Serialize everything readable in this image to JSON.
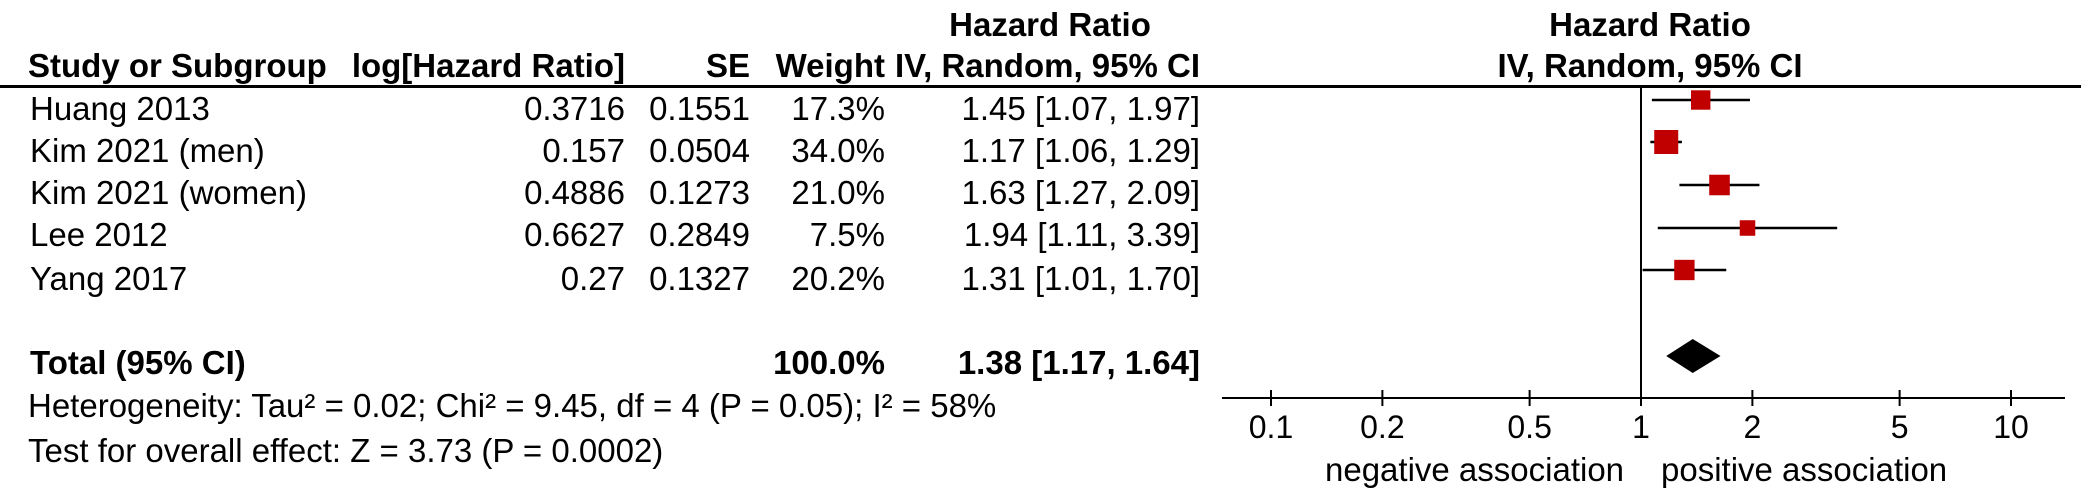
{
  "header": {
    "left_title": "Hazard Ratio",
    "right_title": "Hazard Ratio",
    "col_study": "Study or Subgroup",
    "col_loghr": "log[Hazard Ratio]",
    "col_se": "SE",
    "col_weight": "Weight",
    "col_method": "IV, Random, 95% CI",
    "right_method": "IV, Random, 95% CI"
  },
  "rows": [
    {
      "study": "Huang 2013",
      "loghr": "0.3716",
      "se": "0.1551",
      "weight": "17.3%",
      "ci_text": "1.45 [1.07, 1.97]"
    },
    {
      "study": "Kim 2021 (men)",
      "loghr": "0.157",
      "se": "0.0504",
      "weight": "34.0%",
      "ci_text": "1.17 [1.06, 1.29]"
    },
    {
      "study": "Kim 2021 (women)",
      "loghr": "0.4886",
      "se": "0.1273",
      "weight": "21.0%",
      "ci_text": "1.63 [1.27, 2.09]"
    },
    {
      "study": "Lee 2012",
      "loghr": "0.6627",
      "se": "0.2849",
      "weight": "7.5%",
      "ci_text": "1.94 [1.11, 3.39]"
    },
    {
      "study": "Yang 2017",
      "loghr": "0.27",
      "se": "0.1327",
      "weight": "20.2%",
      "ci_text": "1.31 [1.01, 1.70]"
    }
  ],
  "total": {
    "label": "Total (95% CI)",
    "weight": "100.0%",
    "ci_text": "1.38 [1.17, 1.64]"
  },
  "heterogeneity": "Heterogeneity: Tau² = 0.02; Chi² = 9.45, df = 4 (P = 0.05); I² = 58%",
  "overall_effect": "Test for overall effect: Z = 3.73 (P = 0.0002)",
  "axis": {
    "ticks": [
      "0.1",
      "0.2",
      "0.5",
      "1",
      "2",
      "5",
      "10"
    ],
    "left_label": "negative association",
    "right_label": "positive association"
  },
  "colors": {
    "marker": "#c00000",
    "diamond": "#000000"
  },
  "chart_data": {
    "type": "forest",
    "scale": "log",
    "xlim": [
      0.1,
      10
    ],
    "xticks": [
      0.1,
      0.2,
      0.5,
      1,
      2,
      5,
      10
    ],
    "reference_line": 1,
    "studies": [
      {
        "name": "Huang 2013",
        "hr": 1.45,
        "lower": 1.07,
        "upper": 1.97,
        "weight": 17.3
      },
      {
        "name": "Kim 2021 (men)",
        "hr": 1.17,
        "lower": 1.06,
        "upper": 1.29,
        "weight": 34.0
      },
      {
        "name": "Kim 2021 (women)",
        "hr": 1.63,
        "lower": 1.27,
        "upper": 2.09,
        "weight": 21.0
      },
      {
        "name": "Lee 2012",
        "hr": 1.94,
        "lower": 1.11,
        "upper": 3.39,
        "weight": 7.5
      },
      {
        "name": "Yang 2017",
        "hr": 1.31,
        "lower": 1.01,
        "upper": 1.7,
        "weight": 20.2
      }
    ],
    "pooled": {
      "name": "Total (95% CI)",
      "hr": 1.38,
      "lower": 1.17,
      "upper": 1.64
    }
  }
}
